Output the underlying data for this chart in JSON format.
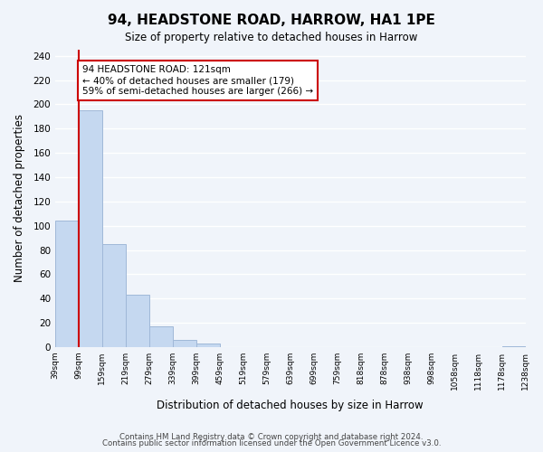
{
  "title": "94, HEADSTONE ROAD, HARROW, HA1 1PE",
  "subtitle": "Size of property relative to detached houses in Harrow",
  "xlabel": "Distribution of detached houses by size in Harrow",
  "ylabel": "Number of detached properties",
  "bar_heights": [
    104,
    195,
    85,
    43,
    17,
    6,
    3,
    0,
    0,
    0,
    0,
    0,
    0,
    0,
    0,
    0,
    0,
    0,
    0,
    1
  ],
  "bin_labels": [
    "39sqm",
    "99sqm",
    "159sqm",
    "219sqm",
    "279sqm",
    "339sqm",
    "399sqm",
    "459sqm",
    "519sqm",
    "579sqm",
    "639sqm",
    "699sqm",
    "759sqm",
    "818sqm",
    "878sqm",
    "938sqm",
    "998sqm",
    "1058sqm",
    "1118sqm",
    "1178sqm",
    "1238sqm"
  ],
  "bar_color": "#c5d8f0",
  "bar_edge_color": "#c5d8f0",
  "ylim": [
    0,
    245
  ],
  "yticks": [
    0,
    20,
    40,
    60,
    80,
    100,
    120,
    140,
    160,
    180,
    200,
    220,
    240
  ],
  "property_line_x": 1,
  "property_line_color": "#cc0000",
  "annotation_text": "94 HEADSTONE ROAD: 121sqm\n← 40% of detached houses are smaller (179)\n59% of semi-detached houses are larger (266) →",
  "annotation_box_color": "#ffffff",
  "annotation_box_edge": "#cc0000",
  "footer_line1": "Contains HM Land Registry data © Crown copyright and database right 2024.",
  "footer_line2": "Contains public sector information licensed under the Open Government Licence v3.0.",
  "background_color": "#f0f4fa",
  "grid_color": "#ffffff"
}
